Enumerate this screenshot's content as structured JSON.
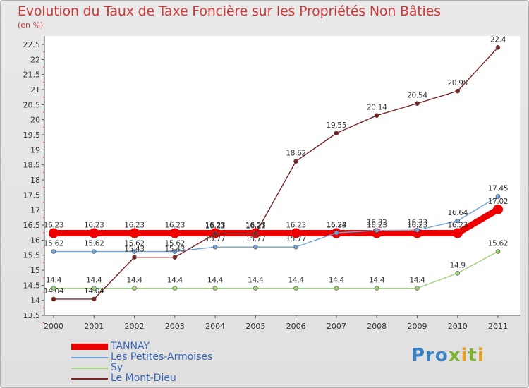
{
  "header": {
    "title": "Evolution du Taux de Taxe Foncière sur les Propriétés Non Bâties",
    "unit": "(en %)"
  },
  "logo": {
    "part1": "Pro",
    "part2": "x",
    "part3": "i",
    "part4": "t",
    "part5": "i"
  },
  "chart_data": {
    "type": "line",
    "title": "Evolution du Taux de Taxe Foncière sur les Propriétés Non Bâties",
    "ylabel": "(en %)",
    "xlabel": "",
    "ylim": [
      13.5,
      22.5
    ],
    "yticks": [
      "13.5",
      "14",
      "14.5",
      "15",
      "15.5",
      "16",
      "16.5",
      "17",
      "17.5",
      "18",
      "18.5",
      "19",
      "19.5",
      "20",
      "20.5",
      "21",
      "21.5",
      "22",
      "22.5"
    ],
    "categories": [
      "2000",
      "2001",
      "2002",
      "2003",
      "2004",
      "2005",
      "2006",
      "2007",
      "2008",
      "2009",
      "2010",
      "2011"
    ],
    "series": [
      {
        "name": "TANNAY",
        "color": "#ee0000",
        "values": [
          16.23,
          16.23,
          16.23,
          16.23,
          16.23,
          16.23,
          16.23,
          16.23,
          16.23,
          16.23,
          16.23,
          17.02
        ],
        "labels": [
          "16.23",
          "16.23",
          "16.23",
          "16.23",
          "16.23",
          "16.23",
          "16.23",
          "16.23",
          "16.23",
          "16.23",
          "16.23",
          "17.02"
        ]
      },
      {
        "name": "Les Petites-Armoises",
        "color": "#6fa3d6",
        "values": [
          15.62,
          15.62,
          15.62,
          15.62,
          15.77,
          15.77,
          15.77,
          16.24,
          16.32,
          16.33,
          16.64,
          17.45
        ],
        "labels": [
          "15.62",
          "15.62",
          "15.62",
          "15.62",
          "15.77",
          "15.77",
          "15.77",
          "16.24",
          "16.32",
          "16.33",
          "16.64",
          "17.45"
        ]
      },
      {
        "name": "Sy",
        "color": "#9fd27a",
        "values": [
          14.4,
          14.4,
          14.4,
          14.4,
          14.4,
          14.4,
          14.4,
          14.4,
          14.4,
          14.4,
          14.9,
          15.62
        ],
        "labels": [
          "14.4",
          "14.4",
          "14.4",
          "14.4",
          "14.4",
          "14.4",
          "14.4",
          "14.4",
          "14.4",
          "14.4",
          "14.9",
          "15.62"
        ]
      },
      {
        "name": "Le Mont-Dieu",
        "color": "#7a2424",
        "values": [
          14.04,
          14.04,
          15.43,
          15.43,
          16.21,
          16.21,
          18.62,
          19.55,
          20.14,
          20.54,
          20.95,
          22.4
        ],
        "labels": [
          "14.04",
          "14.04",
          "15.43",
          "15.43",
          "16.21",
          "16.21",
          "18.62",
          "19.55",
          "20.14",
          "20.54",
          "20.95",
          "22.4"
        ]
      }
    ],
    "legend": "bottom-left",
    "grid": false
  }
}
